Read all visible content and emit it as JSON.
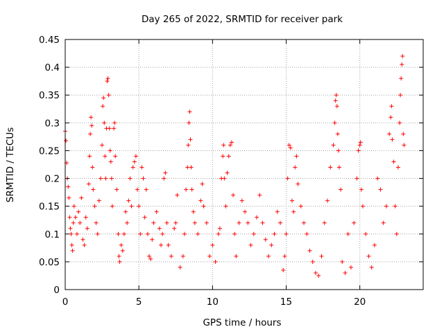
{
  "chart_data": {
    "type": "scatter",
    "title": "Day 265 of 2022, SRMTID for receiver park",
    "xlabel": "GPS time / hours",
    "ylabel": "SRMTID / TECUs",
    "xlim": [
      0,
      24.3
    ],
    "ylim": [
      0,
      0.45
    ],
    "xticks": [
      0,
      5,
      10,
      15,
      20
    ],
    "xtick_labels": [
      "0",
      "5",
      "10",
      "15",
      "20"
    ],
    "yticks": [
      0,
      0.05,
      0.1,
      0.15,
      0.2,
      0.25,
      0.3,
      0.35,
      0.4,
      0.45
    ],
    "ytick_labels": [
      "0",
      "0.05",
      "0.1",
      "0.15",
      "0.2",
      "0.25",
      "0.3",
      "0.35",
      "0.4",
      "0.45"
    ],
    "grid": true,
    "marker": "+",
    "series": [
      {
        "name": "SRMTID",
        "color": "#ff0000",
        "points": [
          [
            0.0,
            0.285
          ],
          [
            0.05,
            0.268
          ],
          [
            0.1,
            0.228
          ],
          [
            0.15,
            0.2
          ],
          [
            0.2,
            0.185
          ],
          [
            0.25,
            0.165
          ],
          [
            0.3,
            0.13
          ],
          [
            0.35,
            0.11
          ],
          [
            0.4,
            0.1
          ],
          [
            0.45,
            0.08
          ],
          [
            0.5,
            0.07
          ],
          [
            0.55,
            0.12
          ],
          [
            0.6,
            0.15
          ],
          [
            0.7,
            0.13
          ],
          [
            0.8,
            0.1
          ],
          [
            0.9,
            0.14
          ],
          [
            1.0,
            0.12
          ],
          [
            1.1,
            0.165
          ],
          [
            1.2,
            0.09
          ],
          [
            1.3,
            0.08
          ],
          [
            1.4,
            0.13
          ],
          [
            1.5,
            0.11
          ],
          [
            1.6,
            0.19
          ],
          [
            1.65,
            0.24
          ],
          [
            1.7,
            0.28
          ],
          [
            1.75,
            0.31
          ],
          [
            1.8,
            0.295
          ],
          [
            1.85,
            0.22
          ],
          [
            1.9,
            0.18
          ],
          [
            2.0,
            0.15
          ],
          [
            2.1,
            0.12
          ],
          [
            2.2,
            0.1
          ],
          [
            2.3,
            0.16
          ],
          [
            2.4,
            0.2
          ],
          [
            2.5,
            0.26
          ],
          [
            2.55,
            0.33
          ],
          [
            2.6,
            0.345
          ],
          [
            2.65,
            0.3
          ],
          [
            2.7,
            0.24
          ],
          [
            2.75,
            0.2
          ],
          [
            2.8,
            0.29
          ],
          [
            2.85,
            0.375
          ],
          [
            2.9,
            0.38
          ],
          [
            2.95,
            0.35
          ],
          [
            3.0,
            0.29
          ],
          [
            3.05,
            0.25
          ],
          [
            3.1,
            0.23
          ],
          [
            3.15,
            0.2
          ],
          [
            3.2,
            0.15
          ],
          [
            3.3,
            0.29
          ],
          [
            3.35,
            0.3
          ],
          [
            3.4,
            0.24
          ],
          [
            3.5,
            0.18
          ],
          [
            3.6,
            0.1
          ],
          [
            3.65,
            0.06
          ],
          [
            3.7,
            0.05
          ],
          [
            3.8,
            0.08
          ],
          [
            3.9,
            0.07
          ],
          [
            4.0,
            0.1
          ],
          [
            4.1,
            0.14
          ],
          [
            4.2,
            0.12
          ],
          [
            4.3,
            0.16
          ],
          [
            4.4,
            0.2
          ],
          [
            4.5,
            0.15
          ],
          [
            4.6,
            0.22
          ],
          [
            4.7,
            0.23
          ],
          [
            4.8,
            0.24
          ],
          [
            4.9,
            0.18
          ],
          [
            5.0,
            0.15
          ],
          [
            5.1,
            0.1
          ],
          [
            5.2,
            0.22
          ],
          [
            5.3,
            0.2
          ],
          [
            5.4,
            0.13
          ],
          [
            5.5,
            0.18
          ],
          [
            5.6,
            0.1
          ],
          [
            5.7,
            0.06
          ],
          [
            5.8,
            0.055
          ],
          [
            5.9,
            0.09
          ],
          [
            6.0,
            0.12
          ],
          [
            6.2,
            0.14
          ],
          [
            6.4,
            0.11
          ],
          [
            6.5,
            0.08
          ],
          [
            6.6,
            0.1
          ],
          [
            6.7,
            0.2
          ],
          [
            6.8,
            0.21
          ],
          [
            6.9,
            0.12
          ],
          [
            7.0,
            0.08
          ],
          [
            7.2,
            0.06
          ],
          [
            7.4,
            0.11
          ],
          [
            7.5,
            0.12
          ],
          [
            7.6,
            0.17
          ],
          [
            7.8,
            0.04
          ],
          [
            8.0,
            0.06
          ],
          [
            8.1,
            0.1
          ],
          [
            8.2,
            0.18
          ],
          [
            8.3,
            0.22
          ],
          [
            8.35,
            0.26
          ],
          [
            8.4,
            0.3
          ],
          [
            8.45,
            0.32
          ],
          [
            8.5,
            0.27
          ],
          [
            8.55,
            0.22
          ],
          [
            8.6,
            0.18
          ],
          [
            8.7,
            0.14
          ],
          [
            8.8,
            0.12
          ],
          [
            9.0,
            0.1
          ],
          [
            9.2,
            0.16
          ],
          [
            9.3,
            0.19
          ],
          [
            9.4,
            0.15
          ],
          [
            9.6,
            0.12
          ],
          [
            9.8,
            0.06
          ],
          [
            10.0,
            0.08
          ],
          [
            10.2,
            0.05
          ],
          [
            10.4,
            0.1
          ],
          [
            10.5,
            0.11
          ],
          [
            10.6,
            0.2
          ],
          [
            10.7,
            0.24
          ],
          [
            10.75,
            0.26
          ],
          [
            10.8,
            0.2
          ],
          [
            10.9,
            0.15
          ],
          [
            11.0,
            0.21
          ],
          [
            11.1,
            0.24
          ],
          [
            11.2,
            0.26
          ],
          [
            11.3,
            0.265
          ],
          [
            11.4,
            0.17
          ],
          [
            11.5,
            0.1
          ],
          [
            11.6,
            0.06
          ],
          [
            11.8,
            0.12
          ],
          [
            12.0,
            0.16
          ],
          [
            12.2,
            0.14
          ],
          [
            12.4,
            0.12
          ],
          [
            12.6,
            0.08
          ],
          [
            12.8,
            0.1
          ],
          [
            13.0,
            0.13
          ],
          [
            13.2,
            0.17
          ],
          [
            13.4,
            0.12
          ],
          [
            13.6,
            0.09
          ],
          [
            13.8,
            0.06
          ],
          [
            14.0,
            0.08
          ],
          [
            14.2,
            0.1
          ],
          [
            14.4,
            0.14
          ],
          [
            14.6,
            0.12
          ],
          [
            14.8,
            0.035
          ],
          [
            14.9,
            0.06
          ],
          [
            15.0,
            0.1
          ],
          [
            15.1,
            0.2
          ],
          [
            15.2,
            0.26
          ],
          [
            15.3,
            0.255
          ],
          [
            15.4,
            0.16
          ],
          [
            15.5,
            0.14
          ],
          [
            15.6,
            0.22
          ],
          [
            15.7,
            0.24
          ],
          [
            15.8,
            0.19
          ],
          [
            16.0,
            0.15
          ],
          [
            16.2,
            0.12
          ],
          [
            16.4,
            0.1
          ],
          [
            16.6,
            0.07
          ],
          [
            16.8,
            0.05
          ],
          [
            17.0,
            0.03
          ],
          [
            17.2,
            0.025
          ],
          [
            17.4,
            0.06
          ],
          [
            17.6,
            0.12
          ],
          [
            17.8,
            0.16
          ],
          [
            18.0,
            0.22
          ],
          [
            18.2,
            0.26
          ],
          [
            18.3,
            0.3
          ],
          [
            18.35,
            0.34
          ],
          [
            18.4,
            0.35
          ],
          [
            18.45,
            0.33
          ],
          [
            18.5,
            0.28
          ],
          [
            18.55,
            0.25
          ],
          [
            18.6,
            0.22
          ],
          [
            18.7,
            0.18
          ],
          [
            18.8,
            0.05
          ],
          [
            19.0,
            0.03
          ],
          [
            19.2,
            0.1
          ],
          [
            19.4,
            0.04
          ],
          [
            19.6,
            0.12
          ],
          [
            19.8,
            0.2
          ],
          [
            19.9,
            0.25
          ],
          [
            20.0,
            0.26
          ],
          [
            20.05,
            0.265
          ],
          [
            20.1,
            0.18
          ],
          [
            20.2,
            0.15
          ],
          [
            20.4,
            0.1
          ],
          [
            20.6,
            0.06
          ],
          [
            20.8,
            0.04
          ],
          [
            21.0,
            0.08
          ],
          [
            21.2,
            0.2
          ],
          [
            21.4,
            0.18
          ],
          [
            21.6,
            0.12
          ],
          [
            21.8,
            0.15
          ],
          [
            22.0,
            0.28
          ],
          [
            22.1,
            0.31
          ],
          [
            22.15,
            0.33
          ],
          [
            22.2,
            0.27
          ],
          [
            22.3,
            0.23
          ],
          [
            22.4,
            0.15
          ],
          [
            22.5,
            0.1
          ],
          [
            22.6,
            0.22
          ],
          [
            22.7,
            0.3
          ],
          [
            22.75,
            0.35
          ],
          [
            22.8,
            0.38
          ],
          [
            22.85,
            0.405
          ],
          [
            22.9,
            0.42
          ],
          [
            22.95,
            0.28
          ],
          [
            23.0,
            0.26
          ]
        ]
      }
    ]
  }
}
